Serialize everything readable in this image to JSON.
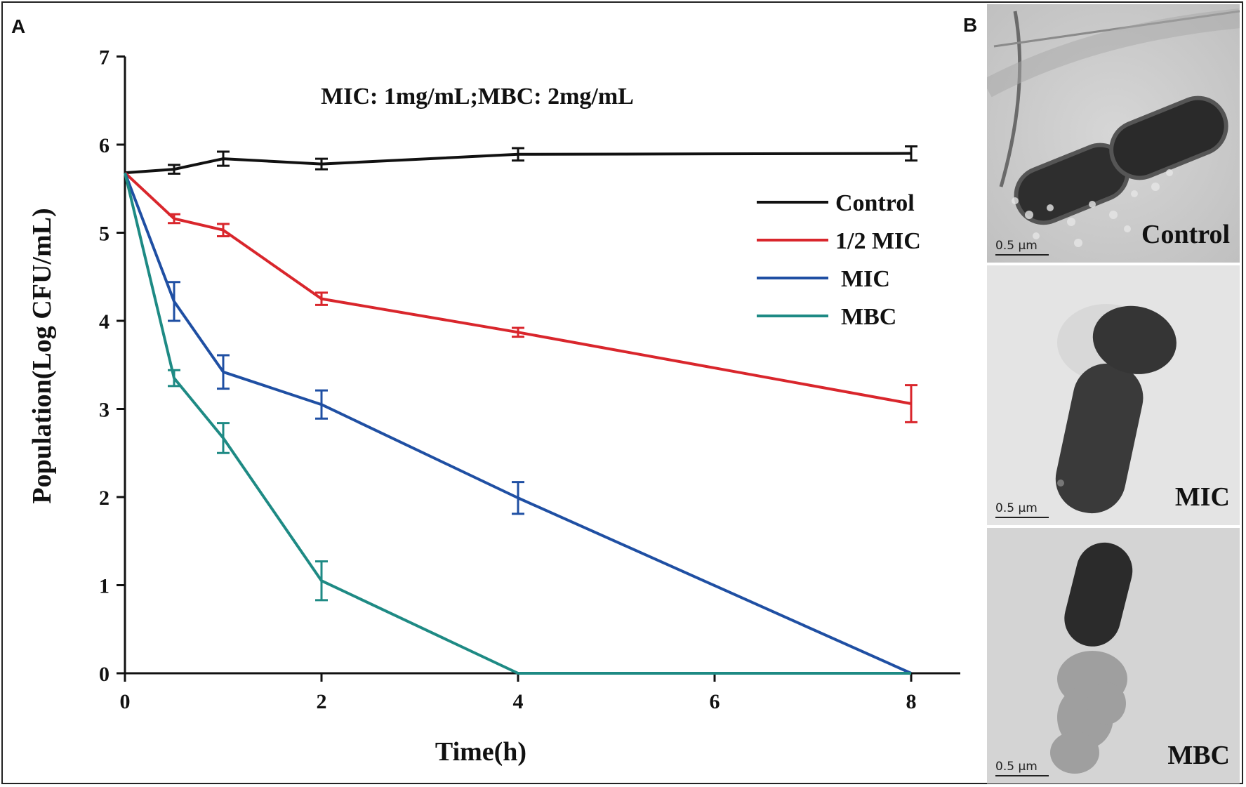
{
  "panels": {
    "a_letter": "A",
    "b_letter": "B"
  },
  "chart_data": {
    "type": "line",
    "annotation": "MIC: 1mg/mL;MBC: 2mg/mL",
    "xlabel": "Time(h)",
    "ylabel": "Population(Log CFU/mL)",
    "xlim": [
      0,
      8.5
    ],
    "ylim": [
      0,
      7
    ],
    "xticks": [
      0,
      2,
      4,
      6,
      8
    ],
    "yticks": [
      0,
      1,
      2,
      3,
      4,
      5,
      6,
      7
    ],
    "legend_position": "right",
    "series": [
      {
        "name": "Control",
        "color": "#111111",
        "x": [
          0,
          0.5,
          1,
          2,
          4,
          8
        ],
        "y": [
          5.68,
          5.72,
          5.84,
          5.78,
          5.89,
          5.9
        ],
        "err": [
          0,
          0.05,
          0.08,
          0.06,
          0.07,
          0.08
        ]
      },
      {
        "name": "1/2 MIC",
        "color": "#d9262c",
        "x": [
          0,
          0.5,
          1,
          2,
          4,
          8
        ],
        "y": [
          5.68,
          5.16,
          5.03,
          4.25,
          3.87,
          3.06
        ],
        "err": [
          0,
          0.05,
          0.07,
          0.07,
          0.05,
          0.21
        ]
      },
      {
        "name": "MIC",
        "color": "#1f4fa3",
        "x": [
          0,
          0.5,
          1,
          2,
          4,
          8
        ],
        "y": [
          5.68,
          4.22,
          3.42,
          3.05,
          1.99,
          0.0
        ],
        "err": [
          0,
          0.22,
          0.19,
          0.16,
          0.18,
          0
        ]
      },
      {
        "name": "MBC",
        "color": "#1e8a84",
        "x": [
          0,
          0.5,
          1,
          2,
          4,
          8
        ],
        "y": [
          5.68,
          3.35,
          2.67,
          1.05,
          0.0,
          0.0
        ],
        "err": [
          0,
          0.09,
          0.17,
          0.22,
          0,
          0
        ]
      }
    ]
  },
  "tem_images": [
    {
      "label": "Control",
      "scale": "0.5 μm"
    },
    {
      "label": "MIC",
      "scale": "0.5 μm"
    },
    {
      "label": "MBC",
      "scale": "0.5 μm"
    }
  ]
}
